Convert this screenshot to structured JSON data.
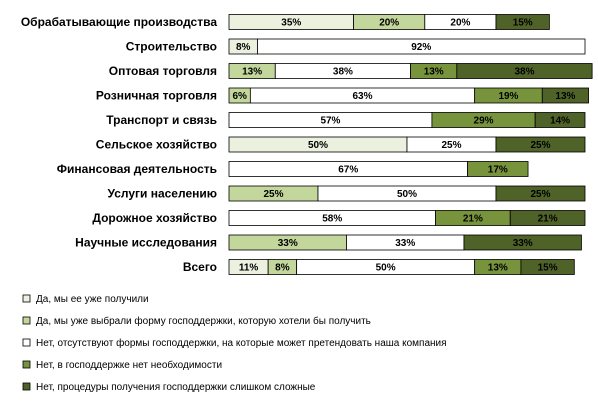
{
  "chart_data": {
    "type": "bar",
    "orientation": "horizontal",
    "stacked": true,
    "categories": [
      "Обрабатывающие производства",
      "Строительство",
      "Оптовая торговля",
      "Розничная торговля",
      "Транспорт и связь",
      "Сельское хозяйство",
      "Финансовая деятельность",
      "Услуги населению",
      "Дорожное хозяйство",
      "Научные исследования",
      "Всего"
    ],
    "series": [
      {
        "name": "Да, мы ее уже получили",
        "color": "#ebf1de",
        "values": [
          35,
          8,
          0,
          0,
          0,
          50,
          0,
          0,
          0,
          0,
          11
        ]
      },
      {
        "name": "Да, мы уже выбрали форму господдержки, которую хотели бы получить",
        "color": "#c3d69b",
        "values": [
          20,
          0,
          13,
          6,
          0,
          0,
          0,
          25,
          0,
          33,
          8
        ]
      },
      {
        "name": "Нет, отсутствуют формы господдержки, на которые может претендовать наша компания",
        "color": "#ffffff",
        "values": [
          20,
          92,
          38,
          63,
          57,
          25,
          67,
          50,
          58,
          33,
          50
        ]
      },
      {
        "name": "Нет, в господдержке нет необходимости",
        "color": "#77933c",
        "values": [
          0,
          0,
          13,
          19,
          29,
          0,
          17,
          0,
          21,
          0,
          13
        ]
      },
      {
        "name": "Нет, процедуры получения господдержки слишком сложные",
        "color": "#4f6228",
        "values": [
          15,
          0,
          38,
          13,
          14,
          25,
          0,
          25,
          21,
          33,
          15
        ]
      }
    ],
    "value_suffix": "%",
    "xlim": [
      0,
      100
    ],
    "grid": false,
    "legend_position": "bottom-left"
  }
}
